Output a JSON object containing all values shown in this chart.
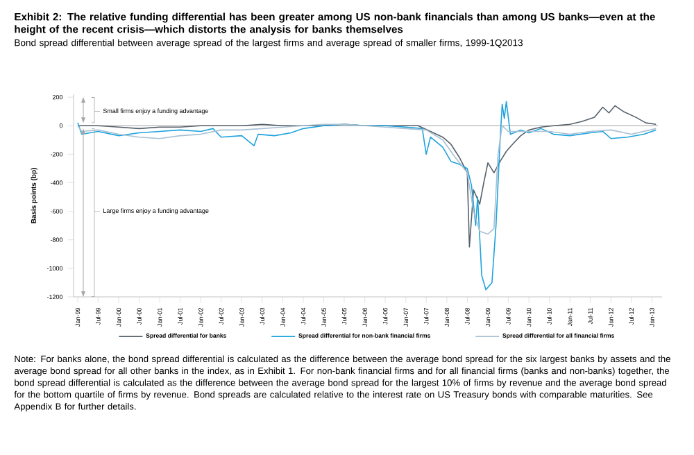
{
  "chart_data": {
    "type": "line",
    "title": "Exhibit 2: The relative funding differential has been greater among US non-bank financials than among US banks—even at the height of the recent crisis—which distorts the analysis for banks themselves",
    "subtitle": "Bond spread differential between average spread of the largest firms and average spread of smaller firms, 1999-1Q2013",
    "ylabel": "Basis points (bp)",
    "annotations": [
      "Small firms enjoy a funding advantage",
      "Large firms enjoy a funding advantage",
      "Note: For banks alone, the bond spread differential is calculated as the difference between the average bond spread for the six largest banks by assets and the average bond spread for all other banks in the index, as in Exhibit 1. For non-bank financial firms and for all financial firms (banks and non-banks) together, the bond spread differential is calculated as the difference between the average bond spread for the largest 10% of firms by revenue and the average bond spread for the bottom quartile of firms by revenue. Bond spreads are calculated relative to the interest rate on US Treasury bonds with comparable maturities. See Appendix B for further details."
    ],
    "xlim": [
      "1998-11-25",
      "2013-04-01"
    ],
    "xticks": [
      {
        "value": "1999-01",
        "label": "Jan-99"
      },
      {
        "value": "1999-07",
        "label": "Jul-99"
      },
      {
        "value": "2000-01",
        "label": "Jan-00"
      },
      {
        "value": "2000-07",
        "label": "Jul-00"
      },
      {
        "value": "2001-01",
        "label": "Jan-01"
      },
      {
        "value": "2001-07",
        "label": "Jul-01"
      },
      {
        "value": "2002-01",
        "label": "Jan-02"
      },
      {
        "value": "2002-07",
        "label": "Jul-02"
      },
      {
        "value": "2003-01",
        "label": "Jan-03"
      },
      {
        "value": "2003-07",
        "label": "Jul-03"
      },
      {
        "value": "2004-01",
        "label": "Jan-04"
      },
      {
        "value": "2004-07",
        "label": "Jul-04"
      },
      {
        "value": "2005-01",
        "label": "Jan-05"
      },
      {
        "value": "2005-07",
        "label": "Jul-05"
      },
      {
        "value": "2006-01",
        "label": "Jan-06"
      },
      {
        "value": "2006-07",
        "label": "Jul-06"
      },
      {
        "value": "2007-01",
        "label": "Jan-07"
      },
      {
        "value": "2007-07",
        "label": "Jul-07"
      },
      {
        "value": "2008-01",
        "label": "Jan-08"
      },
      {
        "value": "2008-07",
        "label": "Jul-08"
      },
      {
        "value": "2009-01",
        "label": "Jan-09"
      },
      {
        "value": "2009-07",
        "label": "Jul-09"
      },
      {
        "value": "2010-01",
        "label": "Jan-10"
      },
      {
        "value": "2010-07",
        "label": "Jul-10"
      },
      {
        "value": "2011-01",
        "label": "Jan-11"
      },
      {
        "value": "2011-07",
        "label": "Jul-11"
      },
      {
        "value": "2012-01",
        "label": "Jan-12"
      },
      {
        "value": "2012-07",
        "label": "Jul-12"
      },
      {
        "value": "2013-01",
        "label": "Jan-13"
      }
    ],
    "ylim": [
      -1200,
      220
    ],
    "yticks": [
      200,
      0,
      -200,
      -400,
      -600,
      -800,
      -1000,
      -1200
    ],
    "ref_lines": [
      {
        "axis": "y",
        "value": 0,
        "color": "#a0a0a0"
      }
    ],
    "legend": "bottom",
    "series": [
      {
        "name": "Spread differential for banks",
        "color": "#56616c",
        "x": [
          "1999-01-01",
          "1999-07-01",
          "2000-01-01",
          "2000-07-01",
          "2001-01-01",
          "2001-07-01",
          "2002-01-01",
          "2002-07-01",
          "2003-01-01",
          "2003-07-01",
          "2004-01-01",
          "2004-07-01",
          "2005-01-01",
          "2005-07-01",
          "2006-01-01",
          "2006-07-01",
          "2007-01-01",
          "2007-04-20",
          "2007-08-08",
          "2007-11-25",
          "2008-02-06",
          "2008-04-20",
          "2008-07-01",
          "2008-07-20",
          "2008-08-26",
          "2008-10-20",
          "2008-11-25",
          "2009-01-01",
          "2009-02-24",
          "2009-04-20",
          "2009-06-14",
          "2009-08-08",
          "2009-10-20",
          "2010-01-01",
          "2010-04-20",
          "2010-08-08",
          "2011-01-01",
          "2011-04-20",
          "2011-08-08",
          "2011-10-20",
          "2011-12-14",
          "2012-02-06",
          "2012-04-20",
          "2012-08-08",
          "2012-11-07",
          "2013-02-06"
        ],
        "values": [
          0,
          0,
          -10,
          -20,
          -10,
          -10,
          0,
          0,
          0,
          10,
          0,
          0,
          0,
          10,
          0,
          0,
          0,
          0,
          -40,
          -80,
          -130,
          -220,
          -330,
          -850,
          -450,
          -550,
          -400,
          -260,
          -330,
          -250,
          -180,
          -130,
          -70,
          -30,
          -10,
          0,
          10,
          30,
          60,
          130,
          90,
          140,
          100,
          60,
          20,
          10
        ]
      },
      {
        "name": "Spread differential for non-bank financial firms",
        "color": "#1ea3dc",
        "x": [
          "1999-01-01",
          "1999-02-06",
          "1999-07-01",
          "2000-01-01",
          "2000-07-01",
          "2001-01-01",
          "2001-07-01",
          "2002-01-01",
          "2002-04-20",
          "2002-07-01",
          "2003-01-01",
          "2003-04-20",
          "2003-05-27",
          "2003-10-20",
          "2004-03-14",
          "2004-07-01",
          "2005-01-01",
          "2005-07-01",
          "2006-01-01",
          "2006-07-01",
          "2007-01-01",
          "2007-05-27",
          "2007-07-01",
          "2007-08-08",
          "2007-11-25",
          "2008-02-06",
          "2008-04-20",
          "2008-07-01",
          "2008-08-08",
          "2008-09-14",
          "2008-10-01",
          "2008-11-07",
          "2008-12-14",
          "2009-02-06",
          "2009-03-14",
          "2009-04-20",
          "2009-05-08",
          "2009-05-27",
          "2009-06-14",
          "2009-07-20",
          "2009-10-20",
          "2010-01-01",
          "2010-04-20",
          "2010-08-08",
          "2011-01-01",
          "2011-07-01",
          "2011-10-20",
          "2012-01-01",
          "2012-05-27",
          "2012-10-20",
          "2013-02-06"
        ],
        "values": [
          20,
          -60,
          -40,
          -70,
          -50,
          -40,
          -30,
          -40,
          -20,
          -80,
          -70,
          -140,
          -60,
          -70,
          -50,
          -20,
          0,
          10,
          0,
          0,
          -10,
          -20,
          -200,
          -80,
          -150,
          -250,
          -270,
          -300,
          -420,
          -700,
          -500,
          -1050,
          -1150,
          -1100,
          -700,
          -100,
          150,
          50,
          170,
          -60,
          -30,
          -50,
          -20,
          -60,
          -70,
          -50,
          -40,
          -90,
          -80,
          -60,
          -30
        ]
      },
      {
        "name": "Spread differential for all financial firms",
        "color": "#a8c0d4",
        "x": [
          "1999-01-01",
          "1999-02-06",
          "1999-07-01",
          "2000-01-01",
          "2000-07-01",
          "2001-01-01",
          "2001-07-01",
          "2002-01-01",
          "2002-07-01",
          "2003-01-01",
          "2003-07-01",
          "2004-01-01",
          "2004-07-01",
          "2005-01-01",
          "2005-07-01",
          "2006-01-01",
          "2006-07-01",
          "2007-01-01",
          "2007-07-01",
          "2007-11-25",
          "2008-03-14",
          "2008-07-01",
          "2008-08-26",
          "2008-10-20",
          "2009-01-01",
          "2009-02-24",
          "2009-04-01",
          "2009-05-08",
          "2009-07-01",
          "2010-01-01",
          "2010-07-01",
          "2011-01-01",
          "2011-07-01",
          "2012-01-01",
          "2012-07-01",
          "2013-02-06"
        ],
        "values": [
          0,
          -40,
          -30,
          -60,
          -80,
          -90,
          -70,
          -60,
          -30,
          -30,
          -20,
          -10,
          0,
          10,
          10,
          0,
          -10,
          -20,
          -30,
          -100,
          -220,
          -330,
          -600,
          -740,
          -760,
          -720,
          -200,
          0,
          -40,
          -40,
          -40,
          -60,
          -40,
          -30,
          -60,
          -20
        ]
      }
    ]
  }
}
